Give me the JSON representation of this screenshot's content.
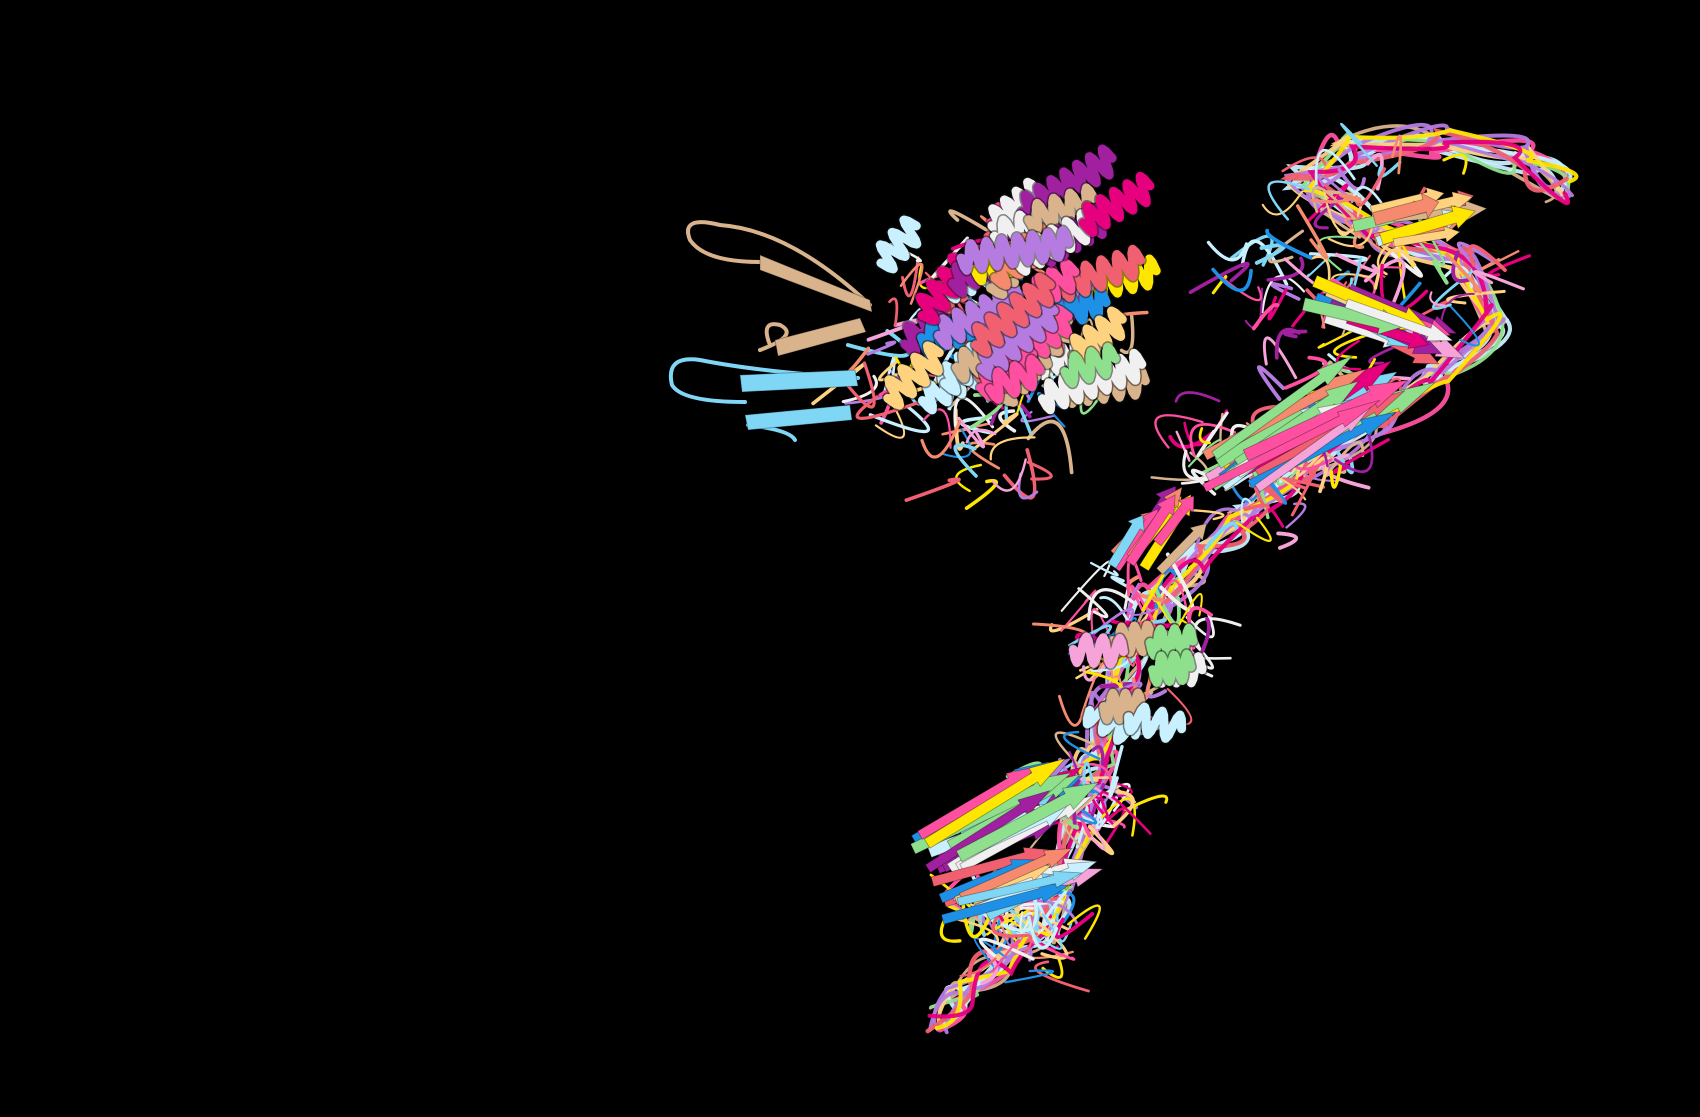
{
  "scene": {
    "background": "#000000",
    "subject": "protein-structure-superposition",
    "representation": "ribbon-cartoon",
    "palette": [
      "#e6007e",
      "#ffe600",
      "#7fd6f5",
      "#f58a6e",
      "#8fe08c",
      "#f5a3d8",
      "#1e90e6",
      "#a020a0",
      "#f0f0f0",
      "#d9b38c",
      "#ffd27f",
      "#ff4fa0",
      "#c8f0ff",
      "#b57be0",
      "#f06070"
    ],
    "accent_strand_colors": {
      "left_hairpin_upper": "#d9b38c",
      "left_hairpin_lower": "#7fd6f5"
    }
  }
}
